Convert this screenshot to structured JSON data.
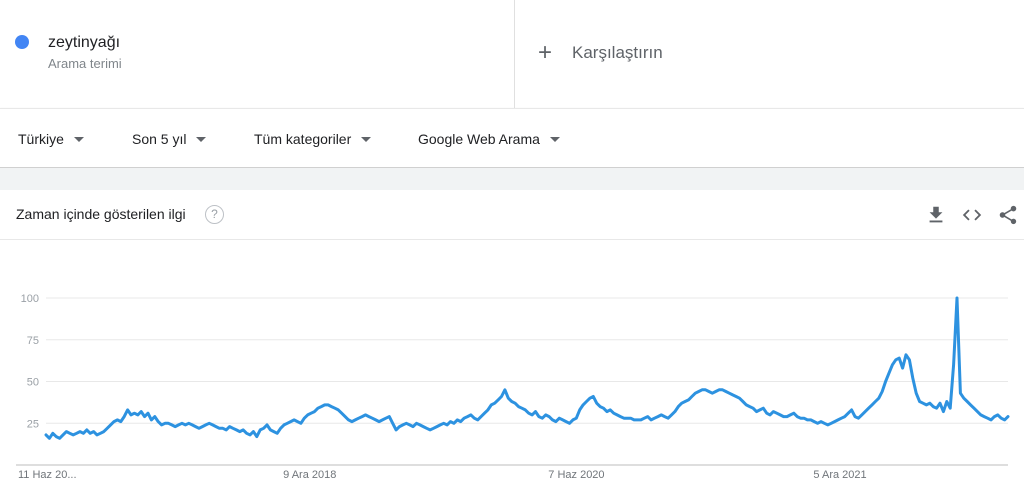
{
  "search_term": {
    "name": "zeytinyağı",
    "subtitle": "Arama terimi",
    "color": "#4285f4"
  },
  "compare": {
    "label": "Karşılaştırın",
    "icon": "plus-icon"
  },
  "filters": [
    {
      "label": "Türkiye"
    },
    {
      "label": "Son 5 yıl"
    },
    {
      "label": "Tüm kategoriler"
    },
    {
      "label": "Google Web Arama"
    }
  ],
  "card": {
    "title": "Zaman içinde gösterilen ilgi",
    "help_glyph": "?",
    "actions": [
      "download-icon",
      "embed-icon",
      "share-icon"
    ]
  },
  "chart_data": {
    "type": "line",
    "ylim": [
      0,
      100
    ],
    "yticks": [
      25,
      50,
      75,
      100
    ],
    "xticks": [
      {
        "index": 0,
        "label": "11 Haz 20..."
      },
      {
        "index": 78,
        "label": "9 Ara 2018"
      },
      {
        "index": 156,
        "label": "7 Haz 2020"
      },
      {
        "index": 234,
        "label": "5 Ara 2021"
      }
    ],
    "grid": true,
    "series": [
      {
        "color": "#2d92e0",
        "values": [
          18,
          16,
          19,
          17,
          16,
          18,
          20,
          19,
          18,
          19,
          20,
          19,
          21,
          19,
          20,
          18,
          19,
          20,
          22,
          24,
          26,
          27,
          26,
          29,
          33,
          30,
          31,
          30,
          32,
          29,
          31,
          27,
          29,
          26,
          24,
          25,
          25,
          24,
          23,
          24,
          25,
          24,
          25,
          24,
          23,
          22,
          23,
          24,
          25,
          24,
          23,
          22,
          22,
          21,
          23,
          22,
          21,
          20,
          21,
          19,
          18,
          20,
          17,
          21,
          22,
          24,
          21,
          20,
          19,
          22,
          24,
          25,
          26,
          27,
          26,
          25,
          28,
          30,
          31,
          32,
          34,
          35,
          36,
          36,
          35,
          34,
          33,
          31,
          29,
          27,
          26,
          27,
          28,
          29,
          30,
          29,
          28,
          27,
          26,
          27,
          28,
          29,
          25,
          21,
          23,
          24,
          25,
          24,
          23,
          25,
          24,
          23,
          22,
          21,
          22,
          23,
          24,
          25,
          24,
          26,
          25,
          27,
          26,
          28,
          29,
          30,
          28,
          27,
          29,
          31,
          33,
          36,
          37,
          39,
          41,
          45,
          40,
          38,
          37,
          35,
          34,
          33,
          31,
          30,
          32,
          29,
          28,
          30,
          29,
          27,
          26,
          28,
          27,
          26,
          25,
          27,
          28,
          33,
          36,
          38,
          40,
          41,
          37,
          35,
          34,
          32,
          33,
          31,
          30,
          29,
          28,
          28,
          28,
          27,
          27,
          27,
          28,
          29,
          27,
          28,
          29,
          30,
          29,
          28,
          30,
          32,
          35,
          37,
          38,
          39,
          41,
          43,
          44,
          45,
          45,
          44,
          43,
          44,
          45,
          45,
          44,
          43,
          42,
          41,
          40,
          38,
          36,
          35,
          34,
          32,
          33,
          34,
          31,
          30,
          32,
          31,
          30,
          29,
          29,
          30,
          31,
          29,
          28,
          28,
          27,
          27,
          26,
          25,
          26,
          25,
          24,
          25,
          26,
          27,
          28,
          29,
          31,
          33,
          29,
          28,
          30,
          32,
          34,
          36,
          38,
          40,
          44,
          50,
          55,
          60,
          63,
          64,
          58,
          66,
          63,
          52,
          43,
          38,
          37,
          36,
          37,
          35,
          34,
          37,
          32,
          38,
          34,
          60,
          100,
          43,
          40,
          38,
          36,
          34,
          32,
          30,
          29,
          28,
          27,
          29,
          30,
          28,
          27,
          29
        ]
      }
    ]
  }
}
